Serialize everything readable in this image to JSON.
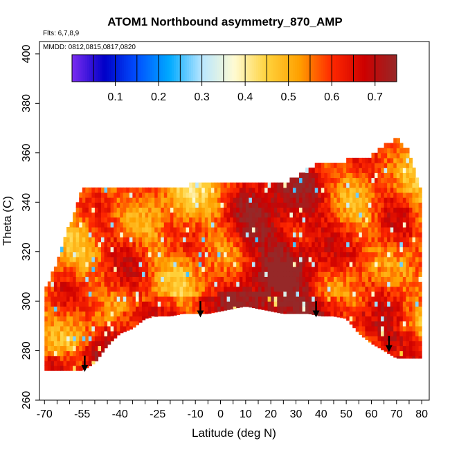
{
  "chart_data": {
    "type": "heatmap",
    "title": "ATOM1 Northbound asymmetry_870_AMP",
    "flights_note": "Flts: 6,7,8,9",
    "dates_note": "MMDD: 0812,0815,0817,0820",
    "xlabel": "Latitude (deg N)",
    "ylabel": "Theta (C)",
    "xlim": [
      -72,
      83
    ],
    "ylim": [
      260,
      405
    ],
    "x_ticks": [
      -70,
      -55,
      -40,
      -25,
      -10,
      0,
      10,
      20,
      30,
      40,
      50,
      60,
      70,
      80
    ],
    "y_ticks": [
      260,
      280,
      300,
      320,
      340,
      360,
      380,
      400
    ],
    "colorbar": {
      "range": [
        0,
        0.75
      ],
      "ticks": [
        0.1,
        0.2,
        0.3,
        0.4,
        0.5,
        0.6,
        0.7
      ],
      "colors": [
        "#7b2cf0",
        "#0000c8",
        "#0050ff",
        "#00aaff",
        "#b8e6ff",
        "#fffbd2",
        "#ffd23c",
        "#ffa000",
        "#ff2800",
        "#cd0000",
        "#962828"
      ]
    },
    "field": {
      "lat": [
        -70,
        -65,
        -60,
        -55,
        -50,
        -45,
        -40,
        -35,
        -30,
        -25,
        -20,
        -15,
        -10,
        -5,
        0,
        5,
        10,
        15,
        20,
        25,
        30,
        35,
        40,
        45,
        50,
        55,
        60,
        65,
        70,
        75,
        80
      ],
      "theta_top": [
        303,
        315,
        330,
        345,
        345,
        345,
        345,
        345,
        345,
        345,
        345,
        345,
        347,
        347,
        347,
        347,
        347,
        347,
        346,
        347,
        349,
        353,
        355,
        355,
        356,
        357,
        358,
        362,
        365,
        360,
        343
      ],
      "theta_bottom": [
        272,
        272,
        272,
        272,
        275,
        282,
        287,
        289,
        293,
        294,
        294,
        295,
        295,
        295,
        296,
        297,
        298,
        297,
        296,
        295,
        295,
        295,
        294,
        294,
        293,
        287,
        283,
        280,
        277,
        277,
        277
      ],
      "mean_value": [
        0.56,
        0.58,
        0.56,
        0.55,
        0.58,
        0.6,
        0.6,
        0.6,
        0.58,
        0.55,
        0.55,
        0.53,
        0.55,
        0.56,
        0.58,
        0.62,
        0.68,
        0.7,
        0.72,
        0.72,
        0.7,
        0.68,
        0.64,
        0.6,
        0.58,
        0.56,
        0.58,
        0.6,
        0.6,
        0.58,
        0.55
      ]
    },
    "tropopause_arrows": [
      {
        "lat": -54,
        "theta": 278
      },
      {
        "lat": -8,
        "theta": 300
      },
      {
        "lat": 38,
        "theta": 300
      },
      {
        "lat": 67,
        "theta": 286
      }
    ]
  }
}
